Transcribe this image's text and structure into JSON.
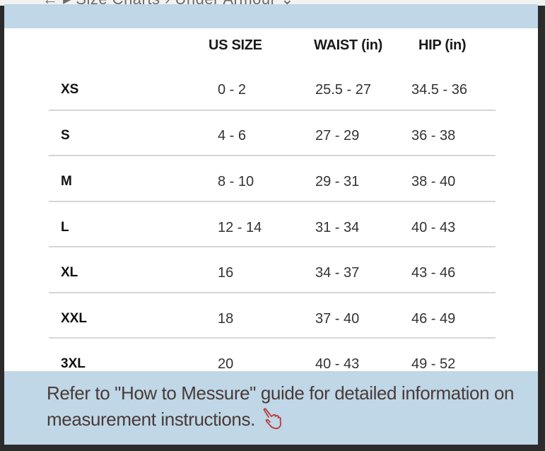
{
  "background": {
    "breadcrumb": "←  ▸  Size Charts  ›  Under Armour ⌄"
  },
  "table": {
    "headers": [
      "",
      "US SIZE",
      "WAIST (in)",
      "HIP (in)"
    ],
    "rows": [
      {
        "size": "XS",
        "us": "0 - 2",
        "waist": "25.5 - 27",
        "hip": "34.5 - 36"
      },
      {
        "size": "S",
        "us": "4 - 6",
        "waist": "27 - 29",
        "hip": "36 - 38"
      },
      {
        "size": "M",
        "us": "8 - 10",
        "waist": "29 - 31",
        "hip": "38 - 40"
      },
      {
        "size": "L",
        "us": "12 - 14",
        "waist": "31 - 34",
        "hip": "40 - 43"
      },
      {
        "size": "XL",
        "us": "16",
        "waist": "34 - 37",
        "hip": "43 - 46"
      },
      {
        "size": "XXL",
        "us": "18",
        "waist": "37 - 40",
        "hip": "46 - 49"
      },
      {
        "size": "3XL",
        "us": "20",
        "waist": "40 - 43",
        "hip": "49 - 52"
      }
    ]
  },
  "footer": {
    "text": "Refer to \"How to Messure\" guide for detailed information on measurement instructions."
  },
  "colors": {
    "band": "#bfd7e6",
    "frame_border": "#2b2b2b",
    "footer_text": "#4a3a38"
  },
  "icons": {
    "footer_icon": "pointing-hand-icon"
  }
}
